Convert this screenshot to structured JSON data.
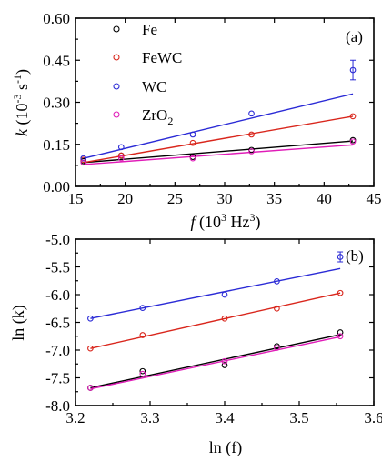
{
  "chart_data": [
    {
      "type": "scatter",
      "panel_label": "(a)",
      "ylabel_main": "k",
      "ylabel_units": "(10",
      "ylabel_exp": "-3",
      "ylabel_mid": " s",
      "ylabel_exp2": "-1",
      "ylabel_close": ")",
      "xlabel_main": "f",
      "xlabel_units": "(10",
      "xlabel_exp": "3",
      "xlabel_rest": " Hz",
      "xlabel_exp2": "3",
      "xlabel_close": ")",
      "xlim": [
        15,
        45
      ],
      "ylim": [
        0.0,
        0.6
      ],
      "xticks": [
        "15",
        "20",
        "25",
        "30",
        "35",
        "40",
        "45"
      ],
      "yticks": [
        "0.00",
        "0.15",
        "0.30",
        "0.45",
        "0.60"
      ],
      "x": [
        15.8,
        19.6,
        26.8,
        32.7,
        42.9
      ],
      "legend_position": "top-left",
      "series": [
        {
          "name": "Fe",
          "name_sub": "",
          "color": "#000000",
          "values": [
            0.09,
            0.11,
            0.105,
            0.13,
            0.165
          ],
          "fit": [
            0.085,
            0.162
          ]
        },
        {
          "name": "FeWC",
          "name_sub": "",
          "color": "#d9261c",
          "values": [
            0.095,
            0.11,
            0.155,
            0.185,
            0.25
          ],
          "fit": [
            0.085,
            0.25
          ]
        },
        {
          "name": "WC",
          "name_sub": "",
          "color": "#2a2ad6",
          "values": [
            0.1,
            0.14,
            0.185,
            0.26,
            0.415
          ],
          "fit": [
            0.1,
            0.33
          ],
          "err": [
            0,
            0,
            0,
            0,
            0.035
          ]
        },
        {
          "name": "ZrO",
          "name_sub": "2",
          "color": "#e01cb8",
          "values": [
            0.085,
            0.1,
            0.1,
            0.125,
            0.16
          ],
          "fit": [
            0.078,
            0.148
          ]
        }
      ]
    },
    {
      "type": "scatter",
      "panel_label": "(b)",
      "ylabel": "ln (k)",
      "xlabel": "ln (f)",
      "xlim": [
        3.2,
        3.6
      ],
      "ylim": [
        -8.0,
        -5.0
      ],
      "xticks": [
        "3.2",
        "3.3",
        "3.4",
        "3.5",
        "3.6"
      ],
      "yticks": [
        "-5.0",
        "-5.5",
        "-6.0",
        "-6.5",
        "-7.0",
        "-7.5",
        "-8.0"
      ],
      "x": [
        3.22,
        3.29,
        3.4,
        3.47,
        3.555
      ],
      "series": [
        {
          "name": "Fe",
          "color": "#000000",
          "values": [
            -7.68,
            -7.38,
            -7.27,
            -6.93,
            -6.68
          ],
          "fit": [
            -7.68,
            -6.72
          ]
        },
        {
          "name": "FeWC",
          "color": "#d9261c",
          "values": [
            -6.97,
            -6.73,
            -6.43,
            -6.25,
            -5.97
          ],
          "fit": [
            -6.97,
            -5.97
          ]
        },
        {
          "name": "WC",
          "color": "#2a2ad6",
          "values": [
            -6.43,
            -6.24,
            -6.0,
            -5.76,
            -5.32
          ],
          "fit": [
            -6.43,
            -5.53
          ],
          "err": [
            0,
            0,
            0,
            0,
            0.09
          ]
        },
        {
          "name": "ZrO2",
          "color": "#e01cb8",
          "values": [
            -7.68,
            -7.43,
            -7.2,
            -6.96,
            -6.75
          ],
          "fit": [
            -7.7,
            -6.76
          ]
        }
      ]
    }
  ]
}
